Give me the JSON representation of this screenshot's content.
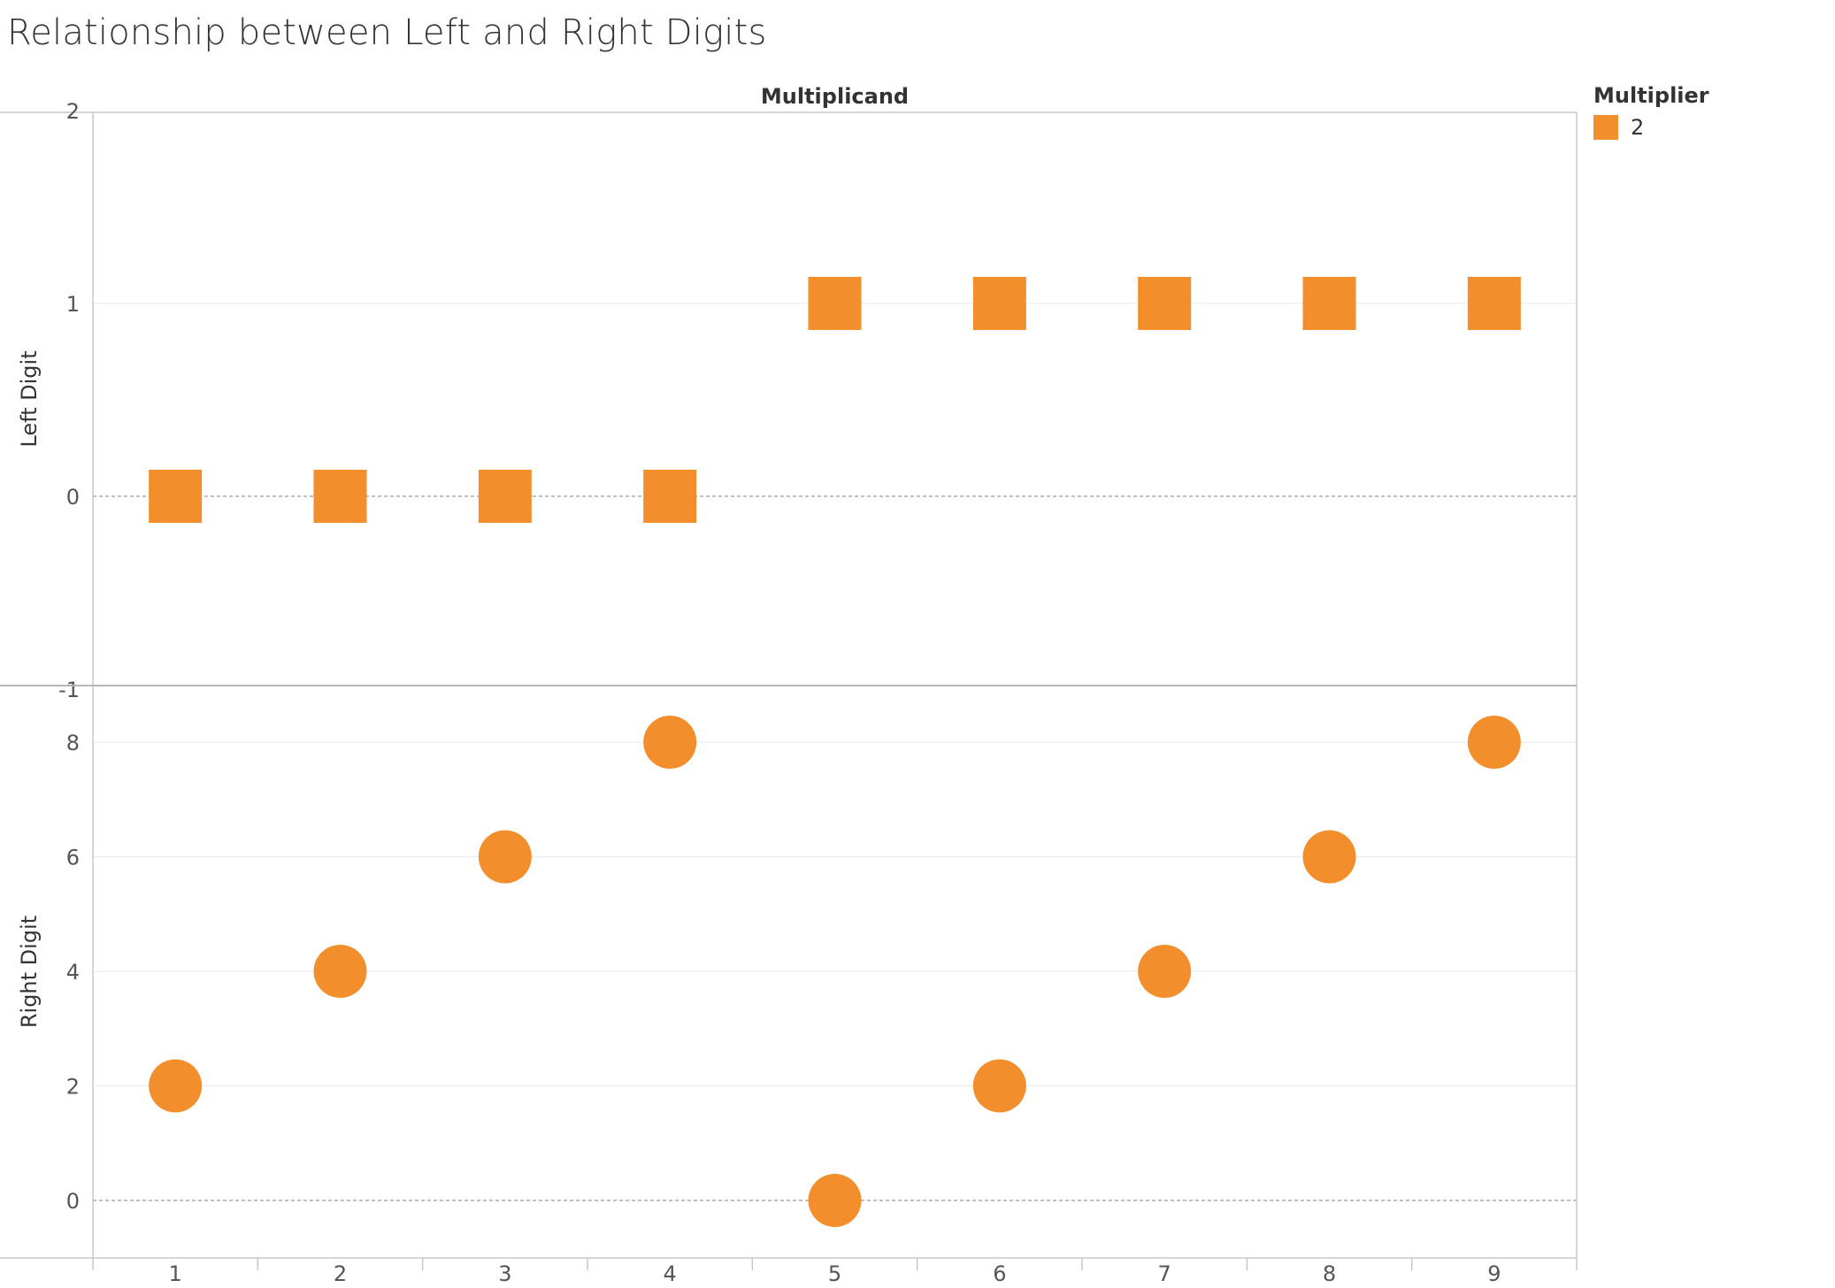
{
  "title": "Relationship between Left and Right Digits",
  "colors": {
    "mark": "#F28E2B"
  },
  "legend": {
    "title": "Multiplier",
    "items": [
      {
        "label": "2",
        "color": "#F28E2B",
        "shape": "square"
      }
    ]
  },
  "chart_data": {
    "type": "scatter",
    "title": "Relationship between Left and Right Digits",
    "header": "Multiplicand",
    "x": {
      "label": "Multiplicand",
      "categories": [
        "1",
        "2",
        "3",
        "4",
        "5",
        "6",
        "7",
        "8",
        "9"
      ]
    },
    "panels": [
      {
        "name": "left-digit",
        "ylabel": "Left Digit",
        "shape": "square",
        "ylim": [
          -1,
          2
        ],
        "yticks": [
          -1,
          0,
          1,
          2
        ],
        "zero_line": true,
        "values": [
          0,
          0,
          0,
          0,
          1,
          1,
          1,
          1,
          1
        ]
      },
      {
        "name": "right-digit",
        "ylabel": "Right Digit",
        "shape": "circle",
        "ylim": [
          -1,
          9
        ],
        "yticks": [
          0,
          2,
          4,
          6,
          8
        ],
        "zero_line": true,
        "values": [
          2,
          4,
          6,
          8,
          0,
          2,
          4,
          6,
          8
        ]
      }
    ],
    "series": [
      {
        "name": "2",
        "color": "#F28E2B"
      }
    ],
    "grid": true,
    "legend_position": "right"
  }
}
